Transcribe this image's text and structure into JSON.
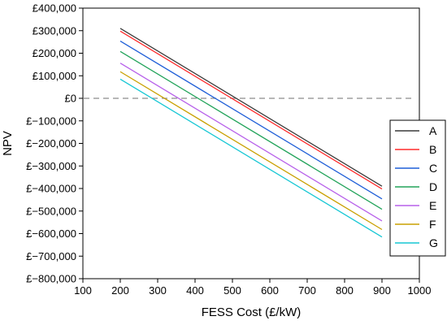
{
  "chart_data": {
    "type": "line",
    "title": "",
    "xlabel": "FESS Cost (£/kW)",
    "ylabel": "NPV",
    "xlim": [
      100,
      1000
    ],
    "ylim": [
      -800000,
      400000
    ],
    "xticks": [
      100,
      200,
      300,
      400,
      500,
      600,
      700,
      800,
      900,
      1000
    ],
    "yticks": [
      400000,
      300000,
      200000,
      100000,
      0,
      -100000,
      -200000,
      -300000,
      -400000,
      -500000,
      -600000,
      -700000,
      -800000
    ],
    "ytick_labels": [
      "£400,000",
      "£300,000",
      "£200,000",
      "£100,000",
      "£0",
      "£−100,000",
      "£−200,000",
      "£−300,000",
      "£−400,000",
      "£−500,000",
      "£−600,000",
      "£−700,000",
      "£−800,000"
    ],
    "reference_line": {
      "y": 0,
      "style": "dashed",
      "color": "#8c8c8c"
    },
    "legend_position": "right-middle",
    "grid": false,
    "x": [
      200,
      900
    ],
    "series": [
      {
        "name": "A",
        "color": "#3a3a3a",
        "values": [
          310000,
          -390000
        ]
      },
      {
        "name": "B",
        "color": "#ff2b2b",
        "values": [
          298000,
          -402000
        ]
      },
      {
        "name": "C",
        "color": "#1f5fd8",
        "values": [
          254000,
          -446000
        ]
      },
      {
        "name": "D",
        "color": "#22a35a",
        "values": [
          208000,
          -492000
        ]
      },
      {
        "name": "E",
        "color": "#b760ea",
        "values": [
          156000,
          -544000
        ]
      },
      {
        "name": "F",
        "color": "#c9a000",
        "values": [
          118000,
          -582000
        ]
      },
      {
        "name": "G",
        "color": "#16c7d4",
        "values": [
          85000,
          -615000
        ]
      }
    ]
  }
}
